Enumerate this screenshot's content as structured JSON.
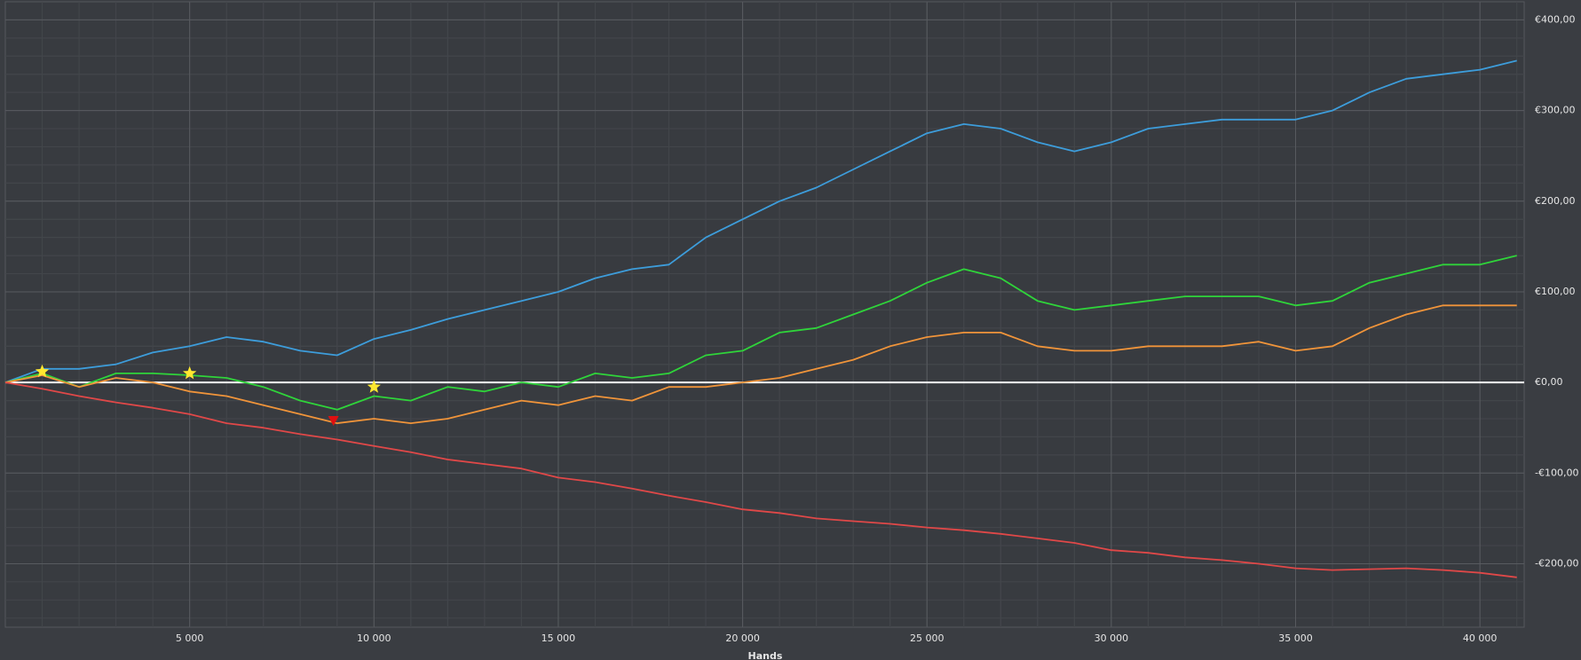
{
  "chart_data": {
    "type": "line",
    "x_label": "Hands",
    "x": [
      0,
      1000,
      2000,
      3000,
      4000,
      5000,
      6000,
      7000,
      8000,
      9000,
      10000,
      11000,
      12000,
      13000,
      14000,
      15000,
      16000,
      17000,
      18000,
      19000,
      20000,
      21000,
      22000,
      23000,
      24000,
      25000,
      26000,
      27000,
      28000,
      29000,
      30000,
      31000,
      32000,
      33000,
      34000,
      35000,
      36000,
      37000,
      38000,
      39000,
      40000,
      41000
    ],
    "series": [
      {
        "color": "#3d9ddb",
        "values": [
          0,
          15,
          15,
          20,
          33,
          40,
          50,
          45,
          35,
          30,
          48,
          58,
          70,
          80,
          90,
          100,
          115,
          125,
          130,
          160,
          180,
          200,
          215,
          235,
          255,
          275,
          285,
          280,
          265,
          255,
          265,
          280,
          285,
          290,
          290,
          290,
          300,
          320,
          335,
          340,
          345,
          355
        ]
      },
      {
        "color": "#2fd43a",
        "values": [
          0,
          10,
          -5,
          10,
          10,
          8,
          5,
          -5,
          -20,
          -30,
          -15,
          -20,
          -5,
          -10,
          0,
          -5,
          10,
          5,
          10,
          30,
          35,
          55,
          60,
          75,
          90,
          110,
          125,
          115,
          90,
          80,
          85,
          90,
          95,
          95,
          95,
          85,
          90,
          110,
          120,
          130,
          130,
          140
        ]
      },
      {
        "color": "#f0943a",
        "values": [
          0,
          8,
          -5,
          5,
          0,
          -10,
          -15,
          -25,
          -35,
          -45,
          -40,
          -45,
          -40,
          -30,
          -20,
          -25,
          -15,
          -20,
          -5,
          -5,
          0,
          5,
          15,
          25,
          40,
          50,
          55,
          55,
          40,
          35,
          35,
          40,
          40,
          40,
          45,
          35,
          40,
          60,
          75,
          85,
          85,
          85
        ]
      },
      {
        "color": "#e04848",
        "values": [
          0,
          -7,
          -15,
          -22,
          -28,
          -35,
          -45,
          -50,
          -57,
          -63,
          -70,
          -77,
          -85,
          -90,
          -95,
          -105,
          -110,
          -117,
          -125,
          -132,
          -140,
          -144,
          -150,
          -153,
          -156,
          -160,
          -163,
          -167,
          -172,
          -177,
          -185,
          -188,
          -193,
          -196,
          -200,
          -205,
          -207,
          -206,
          -205,
          -207,
          -210,
          -215
        ]
      }
    ],
    "markers": [
      {
        "shape": "star",
        "color": "#ffe830",
        "x": 1000,
        "y": 12
      },
      {
        "shape": "star",
        "color": "#ffe830",
        "x": 5000,
        "y": 10
      },
      {
        "shape": "star",
        "color": "#ffe830",
        "x": 10000,
        "y": -5
      },
      {
        "shape": "triangle-down",
        "color": "#e01010",
        "x": 8900,
        "y": -42
      }
    ],
    "xlim": [
      0,
      41200
    ],
    "ylim": [
      -270,
      420
    ],
    "xticks": [
      {
        "value": 5000,
        "label": "5 000"
      },
      {
        "value": 10000,
        "label": "10 000"
      },
      {
        "value": 15000,
        "label": "15 000"
      },
      {
        "value": 20000,
        "label": "20 000"
      },
      {
        "value": 25000,
        "label": "25 000"
      },
      {
        "value": 30000,
        "label": "30 000"
      },
      {
        "value": 35000,
        "label": "35 000"
      },
      {
        "value": 40000,
        "label": "40 000"
      }
    ],
    "yticks": [
      {
        "value": -200,
        "label": "-€200,00"
      },
      {
        "value": -100,
        "label": "-€100,00"
      },
      {
        "value": 0,
        "label": "€0,00"
      },
      {
        "value": 100,
        "label": "€100,00"
      },
      {
        "value": 200,
        "label": "€200,00"
      },
      {
        "value": 300,
        "label": "€300,00"
      },
      {
        "value": 400,
        "label": "€400,00"
      }
    ],
    "grid": true
  }
}
